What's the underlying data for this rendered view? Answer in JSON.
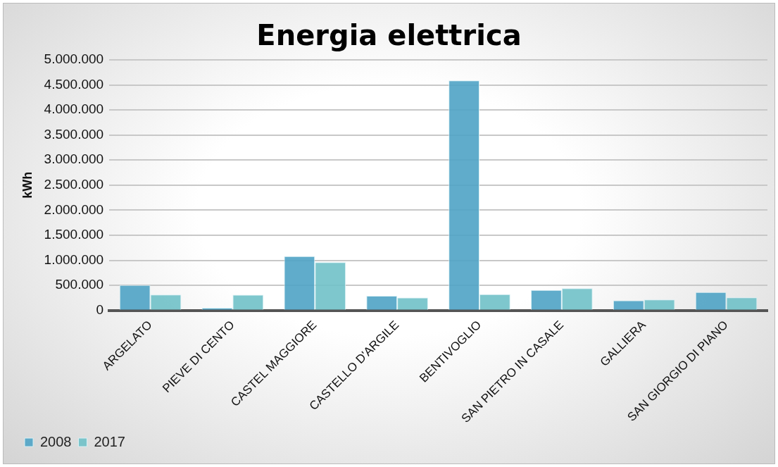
{
  "chart_data": {
    "type": "bar",
    "title": "Energia elettrica",
    "ylabel": "kWh",
    "categories": [
      "ARGELATO",
      "PIEVE DI CENTO",
      "CASTEL MAGGIORE",
      "CASTELLO D'ARGILE",
      "BENTIVOGLIO",
      "SAN PIETRO IN CASALE",
      "GALLIERA",
      "SAN GIORGIO DI PIANO"
    ],
    "series": [
      {
        "name": "2008",
        "color": "#4fa3c5",
        "values": [
          505000,
          50000,
          1080000,
          290000,
          4590000,
          405000,
          200000,
          365000
        ]
      },
      {
        "name": "2017",
        "color": "#70c1c8",
        "values": [
          315000,
          310000,
          960000,
          255000,
          320000,
          440000,
          215000,
          260000
        ]
      }
    ],
    "ylim": [
      0,
      5000000
    ],
    "yticks": [
      {
        "value": 0,
        "label": "0"
      },
      {
        "value": 500000,
        "label": "500.000"
      },
      {
        "value": 1000000,
        "label": "1.000.000"
      },
      {
        "value": 1500000,
        "label": "1.500.000"
      },
      {
        "value": 2000000,
        "label": "2.000.000"
      },
      {
        "value": 2500000,
        "label": "2.500.000"
      },
      {
        "value": 3000000,
        "label": "3.000.000"
      },
      {
        "value": 3500000,
        "label": "3.500.000"
      },
      {
        "value": 4000000,
        "label": "4.000.000"
      },
      {
        "value": 4500000,
        "label": "4.500.000"
      },
      {
        "value": 5000000,
        "label": "5.000.000"
      }
    ],
    "grid": "y",
    "legend": "bottom left"
  }
}
